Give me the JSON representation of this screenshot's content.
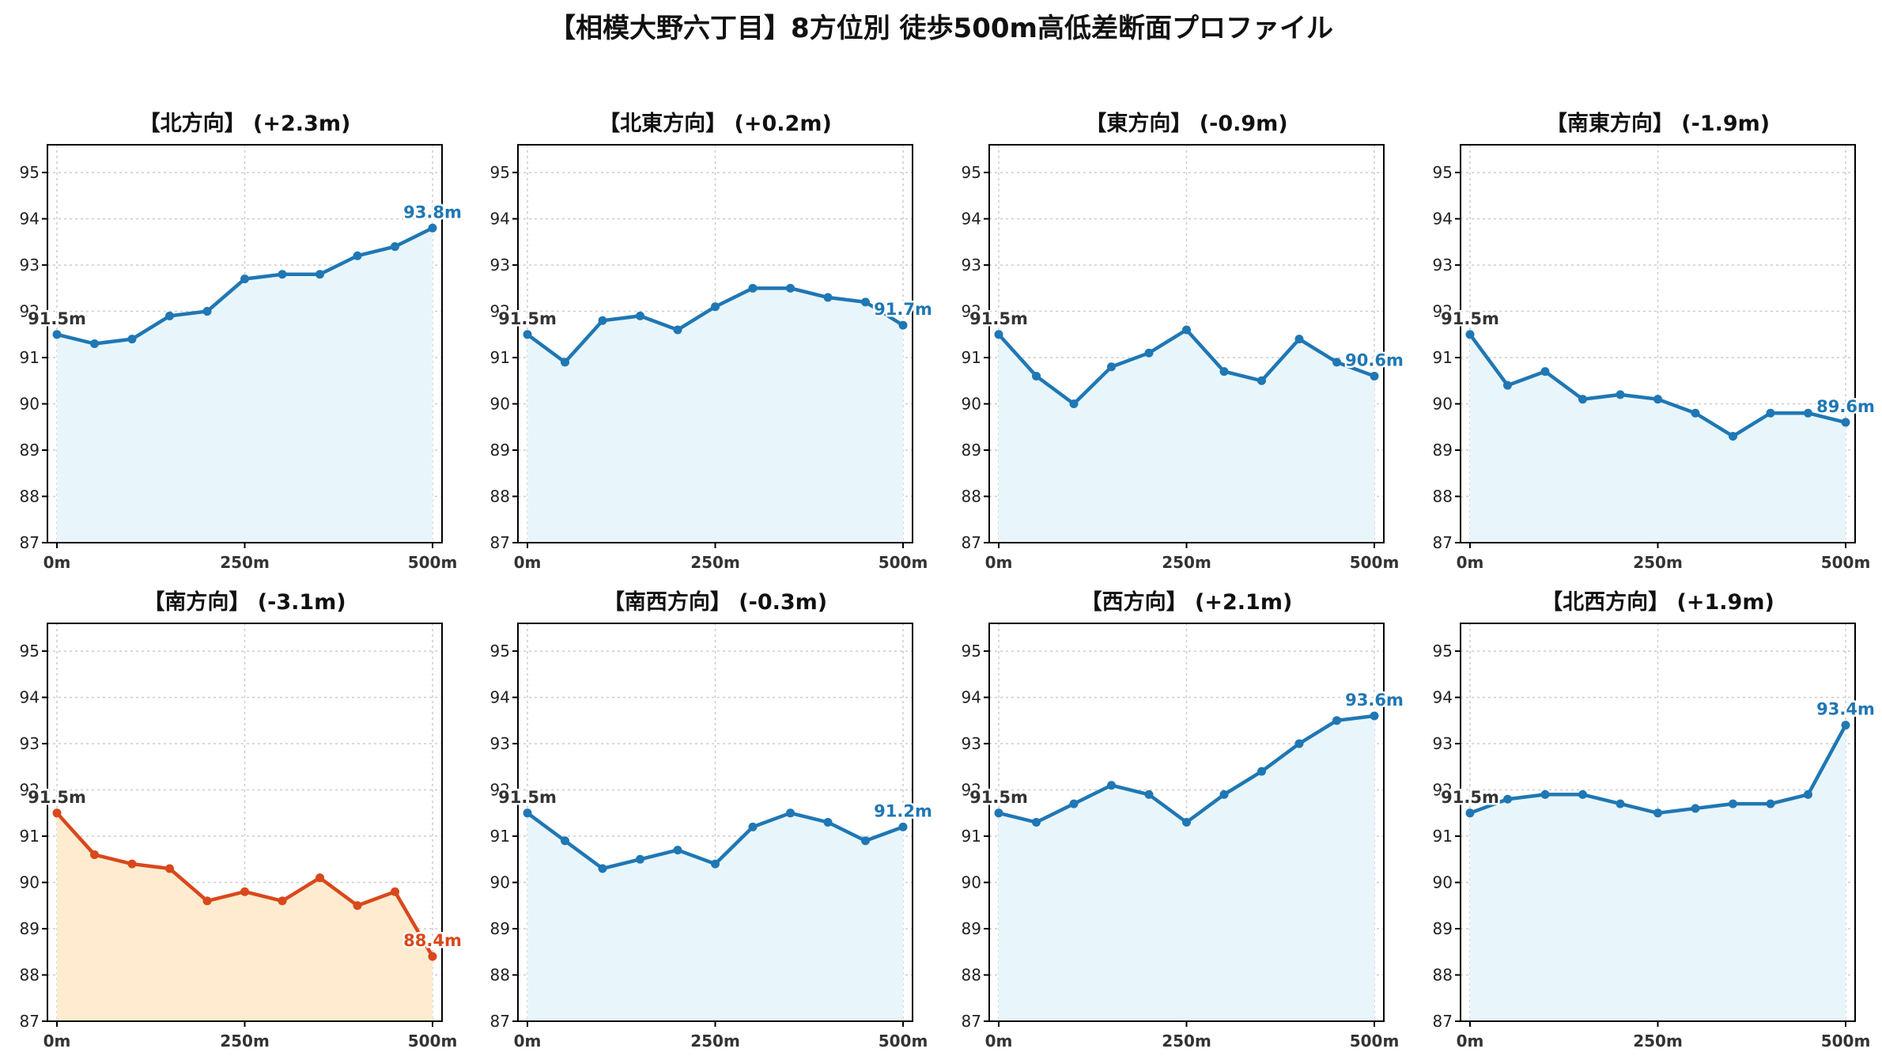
{
  "title": "【相模大野六丁目】8方位別 徒歩500m高低差断面プロファイル",
  "colors": {
    "blue_line": "#1f77b4",
    "blue_fill": "#e8f6fc",
    "red_line": "#d9481b",
    "red_fill": "#ffebcf",
    "start_label": "#333333",
    "grid": "#cccccc"
  },
  "chart_data": [
    {
      "type": "line",
      "title": "【北方向】 (+2.3m)",
      "highlight": false,
      "x": [
        0,
        50,
        100,
        150,
        200,
        250,
        300,
        350,
        400,
        450,
        500
      ],
      "y": [
        91.5,
        91.3,
        91.4,
        91.9,
        92.0,
        92.7,
        92.8,
        92.8,
        93.2,
        93.4,
        93.8
      ],
      "start_label": "91.5m",
      "end_label": "93.8m",
      "xticks": [
        "0m",
        "250m",
        "500m"
      ],
      "yticks": [
        "87",
        "88",
        "89",
        "90",
        "91",
        "92",
        "93",
        "94",
        "95"
      ],
      "xlim": [
        0,
        500
      ],
      "ylim": [
        87,
        95.6
      ],
      "grid": true
    },
    {
      "type": "line",
      "title": "【北東方向】 (+0.2m)",
      "highlight": false,
      "x": [
        0,
        50,
        100,
        150,
        200,
        250,
        300,
        350,
        400,
        450,
        500
      ],
      "y": [
        91.5,
        90.9,
        91.8,
        91.9,
        91.6,
        92.1,
        92.5,
        92.5,
        92.3,
        92.2,
        91.7
      ],
      "start_label": "91.5m",
      "end_label": "91.7m",
      "xticks": [
        "0m",
        "250m",
        "500m"
      ],
      "yticks": [
        "87",
        "88",
        "89",
        "90",
        "91",
        "92",
        "93",
        "94",
        "95"
      ],
      "xlim": [
        0,
        500
      ],
      "ylim": [
        87,
        95.6
      ],
      "grid": true
    },
    {
      "type": "line",
      "title": "【東方向】 (-0.9m)",
      "highlight": false,
      "x": [
        0,
        50,
        100,
        150,
        200,
        250,
        300,
        350,
        400,
        450,
        500
      ],
      "y": [
        91.5,
        90.6,
        90.0,
        90.8,
        91.1,
        91.6,
        90.7,
        90.5,
        91.4,
        90.9,
        90.6
      ],
      "start_label": "91.5m",
      "end_label": "90.6m",
      "xticks": [
        "0m",
        "250m",
        "500m"
      ],
      "yticks": [
        "87",
        "88",
        "89",
        "90",
        "91",
        "92",
        "93",
        "94",
        "95"
      ],
      "xlim": [
        0,
        500
      ],
      "ylim": [
        87,
        95.6
      ],
      "grid": true
    },
    {
      "type": "line",
      "title": "【南東方向】 (-1.9m)",
      "highlight": false,
      "x": [
        0,
        50,
        100,
        150,
        200,
        250,
        300,
        350,
        400,
        450,
        500
      ],
      "y": [
        91.5,
        90.4,
        90.7,
        90.1,
        90.2,
        90.1,
        89.8,
        89.3,
        89.8,
        89.8,
        89.6
      ],
      "start_label": "91.5m",
      "end_label": "89.6m",
      "xticks": [
        "0m",
        "250m",
        "500m"
      ],
      "yticks": [
        "87",
        "88",
        "89",
        "90",
        "91",
        "92",
        "93",
        "94",
        "95"
      ],
      "xlim": [
        0,
        500
      ],
      "ylim": [
        87,
        95.6
      ],
      "grid": true
    },
    {
      "type": "line",
      "title": "【南方向】 (-3.1m)",
      "highlight": true,
      "x": [
        0,
        50,
        100,
        150,
        200,
        250,
        300,
        350,
        400,
        450,
        500
      ],
      "y": [
        91.5,
        90.6,
        90.4,
        90.3,
        89.6,
        89.8,
        89.6,
        90.1,
        89.5,
        89.8,
        88.4
      ],
      "start_label": "91.5m",
      "end_label": "88.4m",
      "xticks": [
        "0m",
        "250m",
        "500m"
      ],
      "yticks": [
        "87",
        "88",
        "89",
        "90",
        "91",
        "92",
        "93",
        "94",
        "95"
      ],
      "xlim": [
        0,
        500
      ],
      "ylim": [
        87,
        95.6
      ],
      "grid": true
    },
    {
      "type": "line",
      "title": "【南西方向】 (-0.3m)",
      "highlight": false,
      "x": [
        0,
        50,
        100,
        150,
        200,
        250,
        300,
        350,
        400,
        450,
        500
      ],
      "y": [
        91.5,
        90.9,
        90.3,
        90.5,
        90.7,
        90.4,
        91.2,
        91.5,
        91.3,
        90.9,
        91.2
      ],
      "start_label": "91.5m",
      "end_label": "91.2m",
      "xticks": [
        "0m",
        "250m",
        "500m"
      ],
      "yticks": [
        "87",
        "88",
        "89",
        "90",
        "91",
        "92",
        "93",
        "94",
        "95"
      ],
      "xlim": [
        0,
        500
      ],
      "ylim": [
        87,
        95.6
      ],
      "grid": true
    },
    {
      "type": "line",
      "title": "【西方向】 (+2.1m)",
      "highlight": false,
      "x": [
        0,
        50,
        100,
        150,
        200,
        250,
        300,
        350,
        400,
        450,
        500
      ],
      "y": [
        91.5,
        91.3,
        91.7,
        92.1,
        91.9,
        91.3,
        91.9,
        92.4,
        93.0,
        93.5,
        93.6
      ],
      "start_label": "91.5m",
      "end_label": "93.6m",
      "xticks": [
        "0m",
        "250m",
        "500m"
      ],
      "yticks": [
        "87",
        "88",
        "89",
        "90",
        "91",
        "92",
        "93",
        "94",
        "95"
      ],
      "xlim": [
        0,
        500
      ],
      "ylim": [
        87,
        95.6
      ],
      "grid": true
    },
    {
      "type": "line",
      "title": "【北西方向】 (+1.9m)",
      "highlight": false,
      "x": [
        0,
        50,
        100,
        150,
        200,
        250,
        300,
        350,
        400,
        450,
        500
      ],
      "y": [
        91.5,
        91.8,
        91.9,
        91.9,
        91.7,
        91.5,
        91.6,
        91.7,
        91.7,
        91.9,
        93.4
      ],
      "start_label": "91.5m",
      "end_label": "93.4m",
      "xticks": [
        "0m",
        "250m",
        "500m"
      ],
      "yticks": [
        "87",
        "88",
        "89",
        "90",
        "91",
        "92",
        "93",
        "94",
        "95"
      ],
      "xlim": [
        0,
        500
      ],
      "ylim": [
        87,
        95.6
      ],
      "grid": true
    }
  ]
}
